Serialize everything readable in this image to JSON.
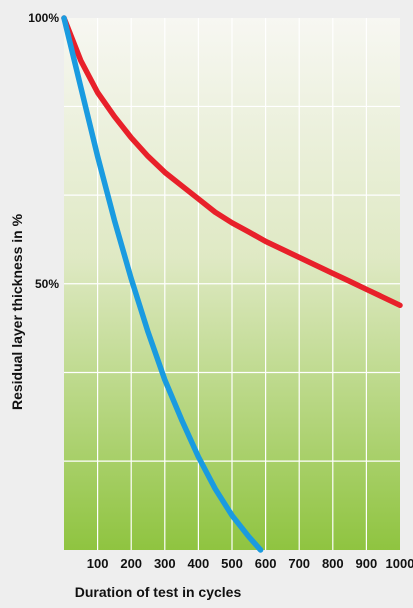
{
  "chart_data": {
    "type": "line",
    "xlabel": "Duration of test in cycles",
    "ylabel": "Residual layer thickness in %",
    "x_ticks": [
      "100",
      "200",
      "300",
      "400",
      "500",
      "600",
      "700",
      "800",
      "900",
      "1000"
    ],
    "x_tick_values": [
      100,
      200,
      300,
      400,
      500,
      600,
      700,
      800,
      900,
      1000
    ],
    "y_ticks": [
      "100%",
      "50%"
    ],
    "y_tick_values": [
      100,
      50
    ],
    "xlim": [
      0,
      1000
    ],
    "ylim": [
      0,
      100
    ],
    "grid": true,
    "series": [
      {
        "color": "#e8202a",
        "x": [
          0,
          50,
          100,
          150,
          200,
          250,
          300,
          350,
          400,
          450,
          500,
          550,
          600,
          650,
          700,
          750,
          800,
          850,
          900,
          950,
          1000
        ],
        "y": [
          100,
          92,
          86,
          81.5,
          77.5,
          74,
          71,
          68.5,
          66,
          63.5,
          61.5,
          59.8,
          58,
          56.5,
          55,
          53.5,
          52,
          50.5,
          49,
          47.5,
          46
        ]
      },
      {
        "color": "#1a9be0",
        "x": [
          0,
          50,
          100,
          150,
          200,
          250,
          300,
          350,
          400,
          450,
          500,
          550,
          585
        ],
        "y": [
          100,
          87,
          74,
          62,
          51,
          41,
          32,
          24.5,
          17.5,
          11.5,
          6.5,
          2.5,
          0
        ]
      }
    ]
  }
}
